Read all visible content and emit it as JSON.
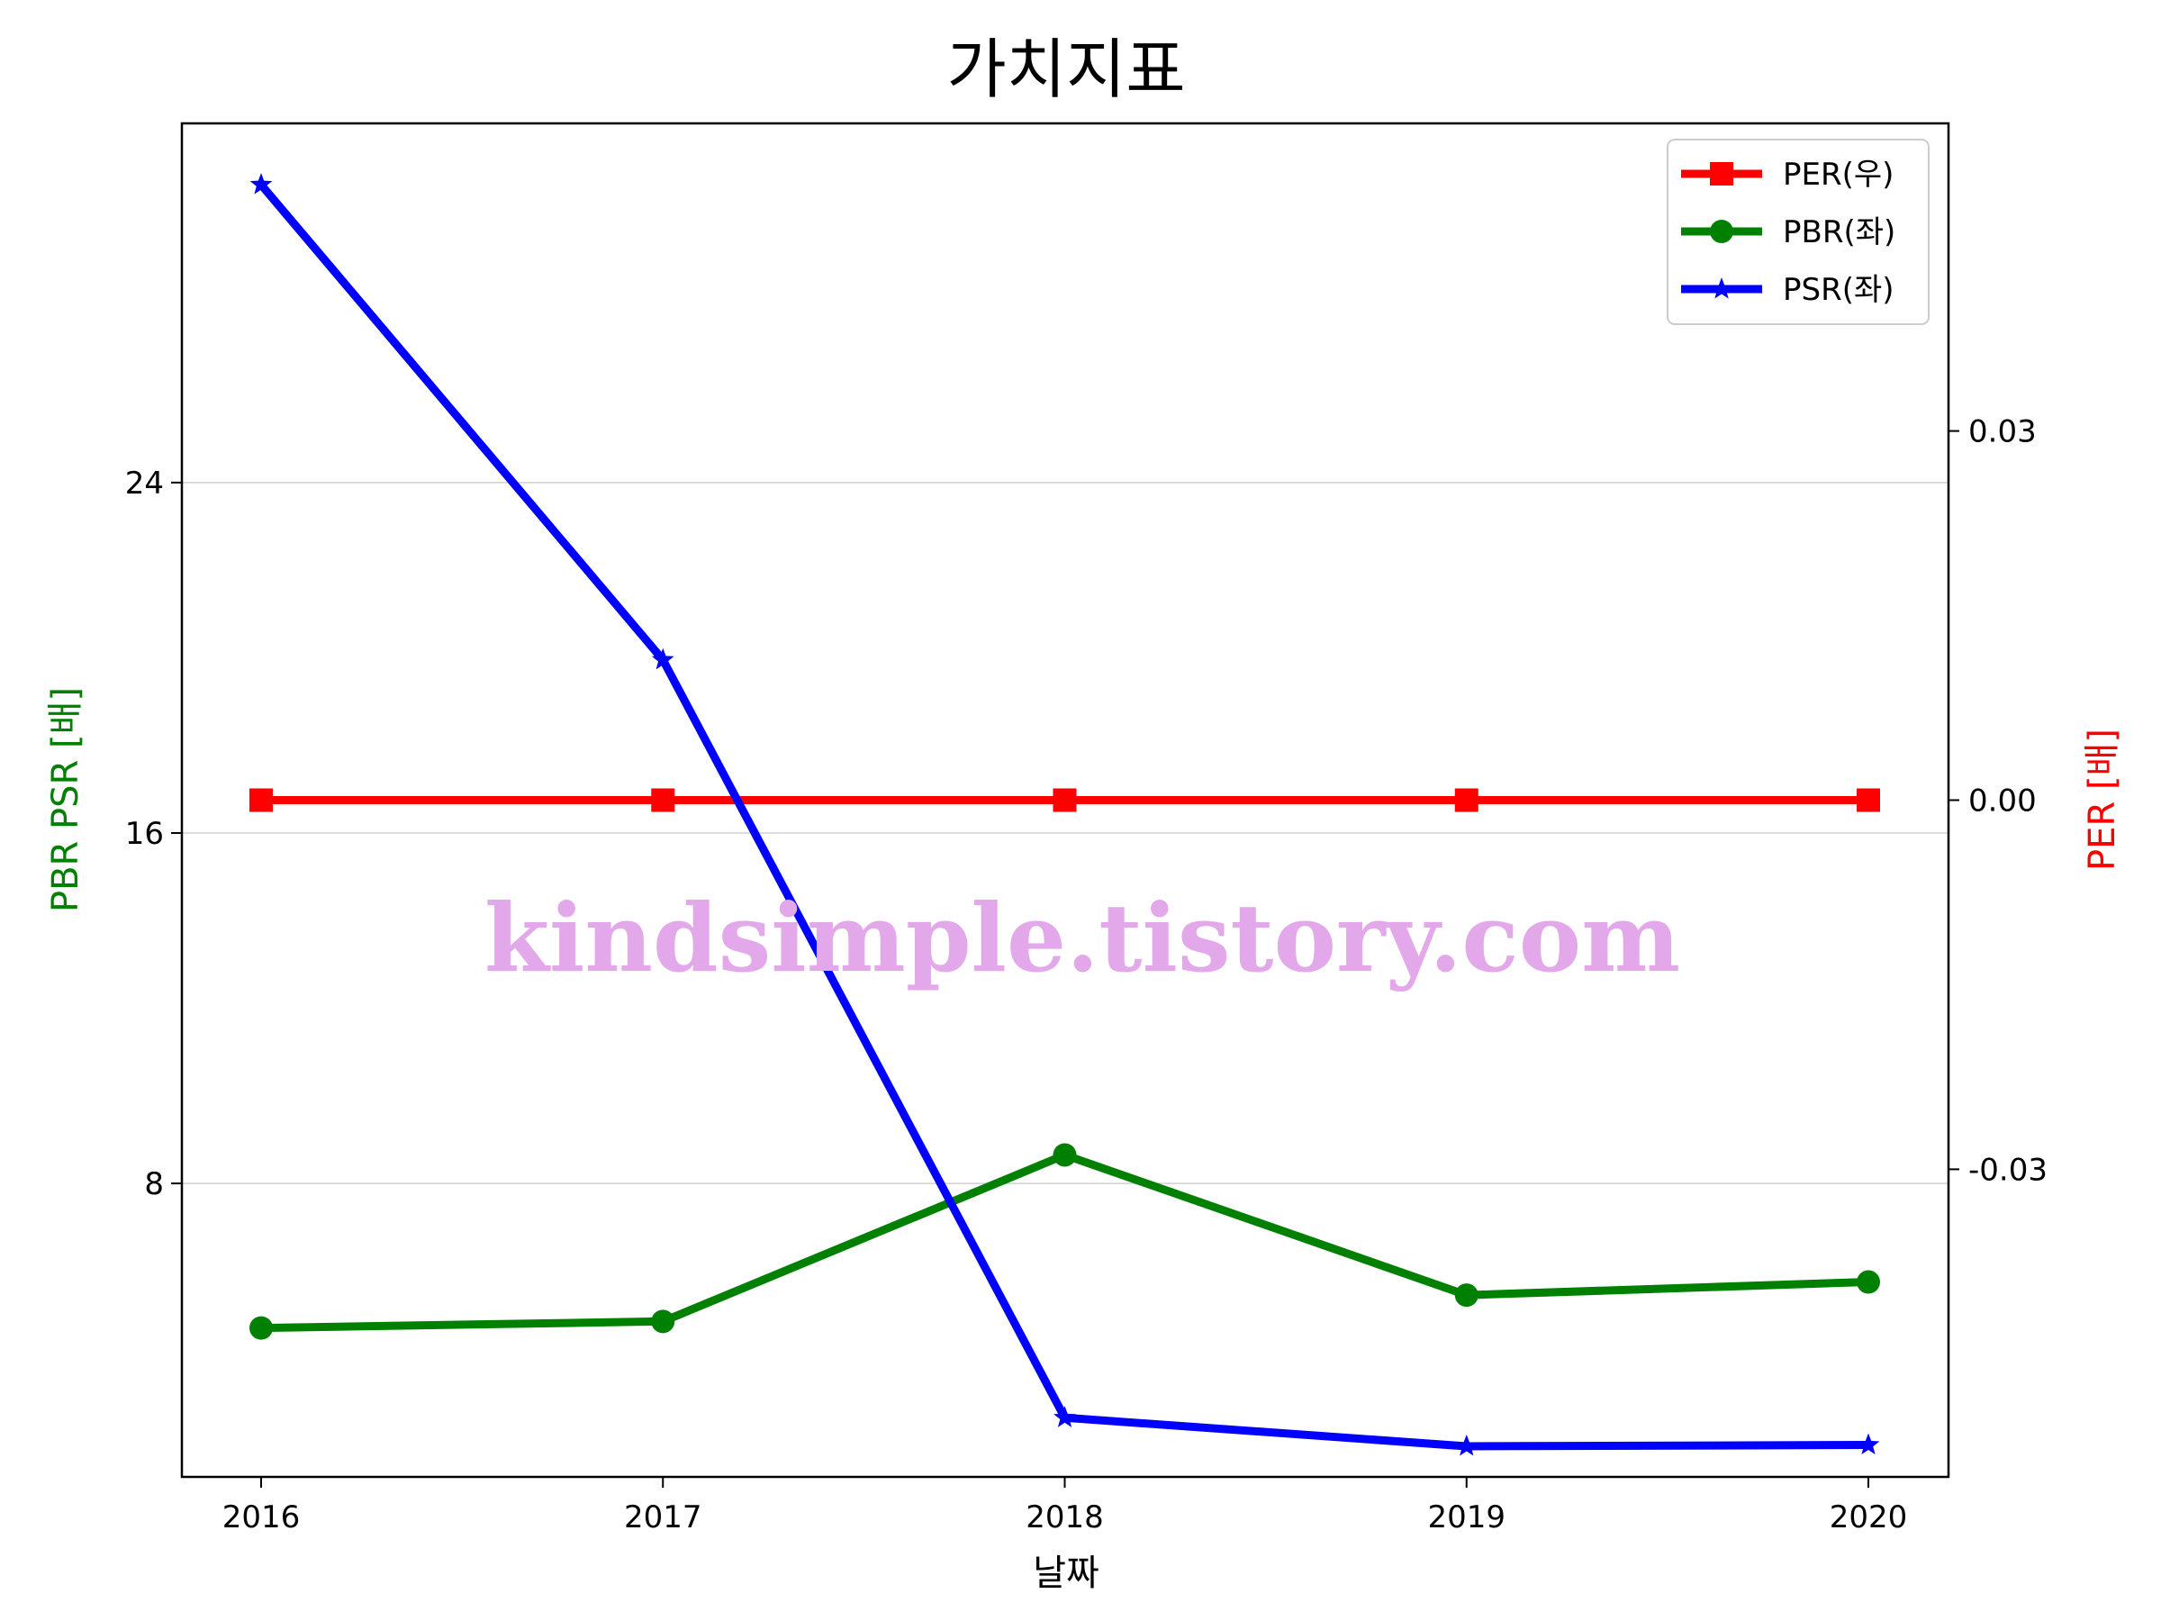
{
  "chart_data": {
    "type": "line",
    "title": "가치지표",
    "xlabel": "날짜",
    "ylabel_left": "PBR PSR [배]",
    "ylabel_right": "PER [배]",
    "categories": [
      "2016",
      "2017",
      "2018",
      "2019",
      "2020"
    ],
    "y_left": {
      "lim": [
        1.3,
        32.2
      ],
      "ticks": [
        "8",
        "16",
        "24"
      ],
      "tick_values": [
        8,
        16,
        24
      ]
    },
    "y_right": {
      "lim": [
        -0.055,
        0.055
      ],
      "ticks": [
        "-0.03",
        "0.00",
        "0.03"
      ],
      "tick_values": [
        -0.03,
        0.0,
        0.03
      ]
    },
    "grid": "horizontal",
    "legend_position": "top-right",
    "series": [
      {
        "name": "PER(우)",
        "axis": "right",
        "color": "#ff0000",
        "marker": "square",
        "values": [
          0.0,
          0.0,
          0.0,
          0.0,
          0.0
        ]
      },
      {
        "name": "PBR(좌)",
        "axis": "left",
        "color": "#008000",
        "marker": "circle",
        "values": [
          4.7,
          4.85,
          8.65,
          5.45,
          5.75
        ]
      },
      {
        "name": "PSR(좌)",
        "axis": "left",
        "color": "#0000ff",
        "marker": "star",
        "values": [
          30.8,
          19.95,
          2.65,
          2.0,
          2.03
        ]
      }
    ],
    "watermark": "kindsimple.tistory.com"
  }
}
